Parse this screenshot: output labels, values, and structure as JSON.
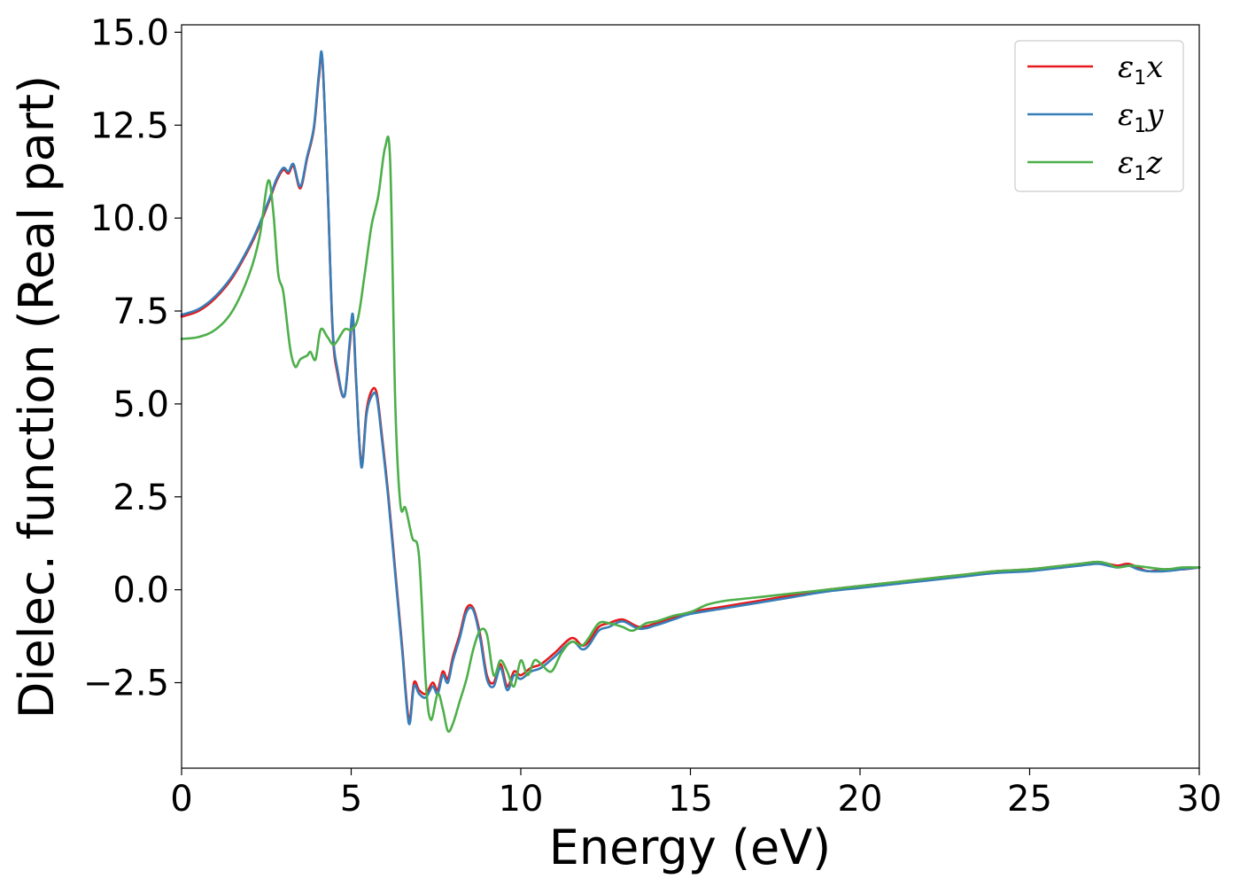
{
  "chart_data": {
    "type": "line",
    "title": "",
    "xlabel": "Energy (eV)",
    "ylabel": "Dielec. function (Real part)",
    "xlim": [
      0,
      30
    ],
    "ylim": [
      -4.8,
      15.2
    ],
    "xticks": [
      0,
      5,
      10,
      15,
      20,
      25,
      30
    ],
    "yticks": [
      -2.5,
      0.0,
      2.5,
      5.0,
      7.5,
      10.0,
      12.5,
      15.0
    ],
    "xtick_labels": [
      "0",
      "5",
      "10",
      "15",
      "20",
      "25",
      "30"
    ],
    "ytick_labels": [
      "−2.5",
      "0.0",
      "2.5",
      "5.0",
      "7.5",
      "10.0",
      "12.5",
      "15.0"
    ],
    "grid": false,
    "legend_position": "top-right",
    "series": [
      {
        "name": "ε₁x",
        "legend_symbol": "ε",
        "legend_sub": "1",
        "legend_var": "x",
        "color": "#e41a1c",
        "x": [
          0,
          0.5,
          1.0,
          1.5,
          2.0,
          2.3,
          2.6,
          2.8,
          3.0,
          3.15,
          3.3,
          3.5,
          3.7,
          3.9,
          4.05,
          4.15,
          4.3,
          4.45,
          4.6,
          4.8,
          4.95,
          5.05,
          5.15,
          5.3,
          5.45,
          5.6,
          5.75,
          5.9,
          6.1,
          6.3,
          6.5,
          6.7,
          6.85,
          7.0,
          7.2,
          7.4,
          7.55,
          7.7,
          7.85,
          8.0,
          8.2,
          8.4,
          8.6,
          8.8,
          9.0,
          9.2,
          9.4,
          9.6,
          9.8,
          10.0,
          10.3,
          10.6,
          11.0,
          11.5,
          11.8,
          12.0,
          12.3,
          12.6,
          13.0,
          13.5,
          14.0,
          14.5,
          15.0,
          16.0,
          17.0,
          18.0,
          19.0,
          20.0,
          21.0,
          22.0,
          23.0,
          24.0,
          25.0,
          26.0,
          26.5,
          27.0,
          27.3,
          27.6,
          27.9,
          28.2,
          28.5,
          29.0,
          29.5,
          30.0
        ],
        "y": [
          7.35,
          7.5,
          7.85,
          8.4,
          9.2,
          9.8,
          10.5,
          11.0,
          11.3,
          11.2,
          11.4,
          10.8,
          11.6,
          12.4,
          13.8,
          14.25,
          11.0,
          7.0,
          5.8,
          5.2,
          6.5,
          7.3,
          5.5,
          3.4,
          4.8,
          5.35,
          5.3,
          4.2,
          2.5,
          0.5,
          -1.5,
          -3.5,
          -2.5,
          -2.7,
          -2.8,
          -2.5,
          -2.7,
          -2.2,
          -2.4,
          -1.8,
          -1.2,
          -0.5,
          -0.5,
          -1.2,
          -2.3,
          -2.5,
          -2.0,
          -2.6,
          -2.2,
          -2.3,
          -2.1,
          -2.0,
          -1.7,
          -1.3,
          -1.5,
          -1.4,
          -1.0,
          -0.9,
          -0.8,
          -1.0,
          -0.9,
          -0.75,
          -0.6,
          -0.45,
          -0.3,
          -0.15,
          0.0,
          0.1,
          0.2,
          0.3,
          0.4,
          0.5,
          0.55,
          0.65,
          0.7,
          0.75,
          0.7,
          0.65,
          0.7,
          0.6,
          0.5,
          0.55,
          0.55,
          0.6
        ]
      },
      {
        "name": "ε₁y",
        "legend_symbol": "ε",
        "legend_sub": "1",
        "legend_var": "y",
        "color": "#377eb8",
        "x": [
          0,
          0.5,
          1.0,
          1.5,
          2.0,
          2.3,
          2.6,
          2.8,
          3.0,
          3.15,
          3.3,
          3.5,
          3.7,
          3.9,
          4.05,
          4.15,
          4.3,
          4.45,
          4.6,
          4.8,
          4.95,
          5.05,
          5.15,
          5.3,
          5.45,
          5.6,
          5.75,
          5.9,
          6.1,
          6.3,
          6.5,
          6.7,
          6.85,
          7.0,
          7.2,
          7.4,
          7.55,
          7.7,
          7.85,
          8.0,
          8.2,
          8.4,
          8.6,
          8.8,
          9.0,
          9.2,
          9.4,
          9.6,
          9.8,
          10.0,
          10.3,
          10.6,
          11.0,
          11.5,
          11.8,
          12.0,
          12.3,
          12.6,
          13.0,
          13.5,
          14.0,
          14.5,
          15.0,
          16.0,
          17.0,
          18.0,
          19.0,
          20.0,
          21.0,
          22.0,
          23.0,
          24.0,
          25.0,
          26.0,
          26.5,
          27.0,
          27.3,
          27.6,
          27.9,
          28.2,
          28.5,
          29.0,
          29.5,
          30.0
        ],
        "y": [
          7.4,
          7.55,
          7.9,
          8.45,
          9.25,
          9.85,
          10.55,
          11.05,
          11.35,
          11.25,
          11.45,
          10.85,
          11.65,
          12.45,
          13.9,
          14.3,
          11.0,
          7.1,
          5.9,
          5.2,
          6.6,
          7.4,
          5.6,
          3.3,
          4.7,
          5.2,
          5.2,
          4.1,
          2.4,
          0.4,
          -1.6,
          -3.6,
          -2.6,
          -2.8,
          -2.9,
          -2.6,
          -2.8,
          -2.3,
          -2.5,
          -1.9,
          -1.3,
          -0.6,
          -0.55,
          -1.3,
          -2.4,
          -2.6,
          -2.1,
          -2.7,
          -2.3,
          -2.4,
          -2.2,
          -2.1,
          -1.8,
          -1.4,
          -1.6,
          -1.5,
          -1.1,
          -1.0,
          -0.85,
          -1.05,
          -0.95,
          -0.8,
          -0.65,
          -0.5,
          -0.35,
          -0.2,
          -0.05,
          0.05,
          0.15,
          0.25,
          0.35,
          0.45,
          0.5,
          0.6,
          0.65,
          0.7,
          0.65,
          0.6,
          0.65,
          0.55,
          0.5,
          0.5,
          0.55,
          0.6
        ]
      },
      {
        "name": "ε₁z",
        "legend_symbol": "ε",
        "legend_sub": "1",
        "legend_var": "z",
        "color": "#4daf4a",
        "x": [
          0,
          0.5,
          1.0,
          1.5,
          2.0,
          2.3,
          2.55,
          2.7,
          2.85,
          3.0,
          3.2,
          3.35,
          3.5,
          3.7,
          3.8,
          3.95,
          4.1,
          4.3,
          4.5,
          4.8,
          5.0,
          5.2,
          5.4,
          5.6,
          5.8,
          6.0,
          6.15,
          6.3,
          6.45,
          6.6,
          6.8,
          7.0,
          7.2,
          7.35,
          7.55,
          7.7,
          7.85,
          8.0,
          8.2,
          8.4,
          8.6,
          8.8,
          9.0,
          9.2,
          9.4,
          9.6,
          9.8,
          10.0,
          10.2,
          10.4,
          10.6,
          10.9,
          11.2,
          11.5,
          11.8,
          12.0,
          12.3,
          12.6,
          13.0,
          13.3,
          13.7,
          14.0,
          14.5,
          15.0,
          15.5,
          16.0,
          16.5,
          17.0,
          18.0,
          19.0,
          20.0,
          21.0,
          22.0,
          23.0,
          24.0,
          25.0,
          26.0,
          26.5,
          27.0,
          27.3,
          27.6,
          28.0,
          28.5,
          29.0,
          29.5,
          30.0
        ],
        "y": [
          6.75,
          6.8,
          7.0,
          7.5,
          8.5,
          9.5,
          11.0,
          10.2,
          8.5,
          8.0,
          6.5,
          6.0,
          6.2,
          6.3,
          6.4,
          6.2,
          7.0,
          6.8,
          6.6,
          7.0,
          7.0,
          7.3,
          8.5,
          9.8,
          10.6,
          11.9,
          11.5,
          5.0,
          2.3,
          2.2,
          1.4,
          0.9,
          -2.5,
          -3.5,
          -2.8,
          -3.2,
          -3.8,
          -3.6,
          -3.0,
          -2.4,
          -1.6,
          -1.1,
          -1.2,
          -2.3,
          -1.9,
          -2.2,
          -2.6,
          -1.9,
          -2.3,
          -1.9,
          -2.0,
          -2.2,
          -1.7,
          -1.4,
          -1.5,
          -1.3,
          -0.9,
          -0.9,
          -1.0,
          -1.1,
          -0.9,
          -0.85,
          -0.7,
          -0.6,
          -0.4,
          -0.3,
          -0.25,
          -0.2,
          -0.1,
          0.0,
          0.1,
          0.2,
          0.3,
          0.4,
          0.5,
          0.55,
          0.65,
          0.7,
          0.75,
          0.7,
          0.6,
          0.65,
          0.6,
          0.55,
          0.6,
          0.6
        ]
      }
    ]
  }
}
